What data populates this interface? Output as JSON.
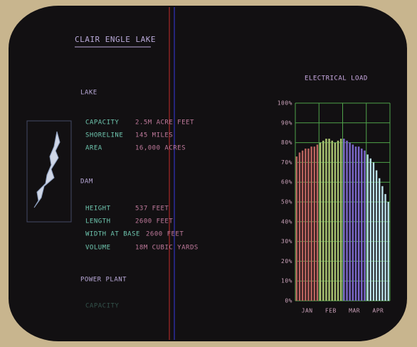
{
  "screen": {
    "title": "CLAIR ENGLE LAKE",
    "sections": [
      {
        "heading": "LAKE",
        "rows": [
          {
            "label": "CAPACITY",
            "value": "2.5M ACRE FEET"
          },
          {
            "label": "SHORELINE",
            "value": "145 MILES"
          },
          {
            "label": "AREA",
            "value": "16,000 ACRES"
          }
        ]
      },
      {
        "heading": "DAM",
        "rows": [
          {
            "label": "HEIGHT",
            "value": "537 FEET"
          },
          {
            "label": "LENGTH",
            "value": "2600 FEET"
          },
          {
            "label": "WIDTH AT BASE",
            "value": "2600 FEET"
          },
          {
            "label": "VOLUME",
            "value": "18M CUBIC YARDS"
          }
        ]
      },
      {
        "heading": "POWER PLANT",
        "rows": [
          {
            "label": "CAPACITY",
            "value": ""
          }
        ]
      }
    ]
  },
  "chart_data": {
    "type": "bar",
    "title": "ELECTRICAL LOAD",
    "categories": [
      "JAN",
      "FEB",
      "MAR",
      "APR"
    ],
    "bar_groups": [
      {
        "color": "#b8625e",
        "values": [
          73,
          75,
          76,
          77,
          77,
          78,
          78,
          79
        ]
      },
      {
        "color": "#a8c070",
        "values": [
          80,
          81,
          82,
          82,
          81,
          80,
          81,
          82
        ]
      },
      {
        "color": "#7a66c8",
        "values": [
          82,
          81,
          80,
          79,
          78,
          78,
          77,
          76
        ]
      },
      {
        "color": "#b6dbe4",
        "values": [
          74,
          72,
          70,
          66,
          62,
          58,
          54,
          50
        ]
      }
    ],
    "ylim": [
      0,
      100
    ],
    "yticks": [
      {
        "value": 0,
        "label": "0%"
      },
      {
        "value": 10,
        "label": "10%"
      },
      {
        "value": 20,
        "label": "20%"
      },
      {
        "value": 30,
        "label": "30%"
      },
      {
        "value": 40,
        "label": "40%"
      },
      {
        "value": 50,
        "label": "50%"
      },
      {
        "value": 60,
        "label": "60%"
      },
      {
        "value": 70,
        "label": "70%"
      },
      {
        "value": 80,
        "label": "80%"
      },
      {
        "value": 90,
        "label": "90%"
      },
      {
        "value": 100,
        "label": "100%"
      }
    ],
    "grid": true,
    "grid_color": "#4fa24a"
  }
}
